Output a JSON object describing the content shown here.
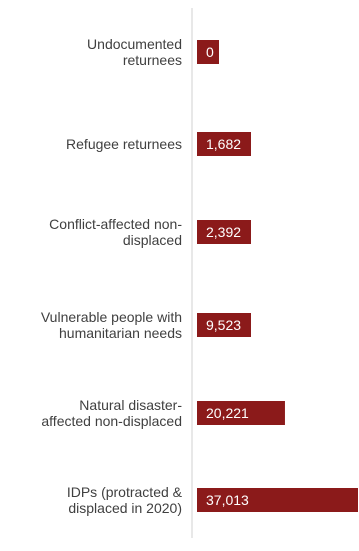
{
  "chart_data": {
    "type": "bar",
    "orientation": "horizontal",
    "categories": [
      [
        "Undocumented",
        "returnees"
      ],
      [
        "Refugee returnees"
      ],
      [
        "Conflict-affected non-",
        "displaced"
      ],
      [
        "Vulnerable people with",
        "humanitarian needs"
      ],
      [
        "Natural disaster-",
        "affected non-displaced"
      ],
      [
        "IDPs (protracted &",
        "displaced in 2020)"
      ]
    ],
    "values": [
      0,
      1682,
      2392,
      9523,
      20221,
      37013
    ],
    "value_labels": [
      "0",
      "1,682",
      "2,392",
      "9,523",
      "20,221",
      "37,013"
    ],
    "xlim": [
      0,
      37013
    ],
    "bar_color": "#8b1a1a",
    "label_color": "#ffffff",
    "category_label_color": "#404040",
    "axis_color": "#d0d0d0",
    "grid": false,
    "legend": "none"
  }
}
